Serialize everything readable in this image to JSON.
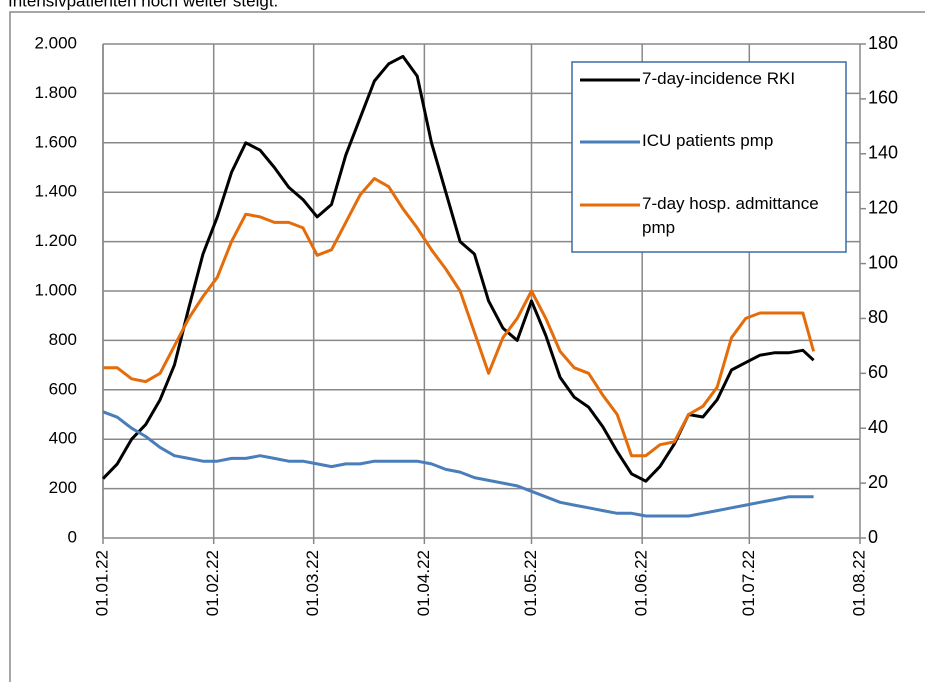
{
  "caption": "Intensivpatienten noch weiter steigt.",
  "chart_data": {
    "type": "line",
    "x": [
      "01.01.22",
      "05.01.22",
      "09.01.22",
      "13.01.22",
      "17.01.22",
      "21.01.22",
      "25.01.22",
      "29.01.22",
      "02.02.22",
      "06.02.22",
      "10.02.22",
      "14.02.22",
      "18.02.22",
      "22.02.22",
      "26.02.22",
      "02.03.22",
      "06.03.22",
      "10.03.22",
      "14.03.22",
      "18.03.22",
      "22.03.22",
      "26.03.22",
      "30.03.22",
      "03.04.22",
      "07.04.22",
      "11.04.22",
      "15.04.22",
      "19.04.22",
      "23.04.22",
      "27.04.22",
      "01.05.22",
      "05.05.22",
      "09.05.22",
      "13.05.22",
      "17.05.22",
      "21.05.22",
      "25.05.22",
      "29.05.22",
      "02.06.22",
      "06.06.22",
      "10.06.22",
      "14.06.22",
      "18.06.22",
      "22.06.22",
      "26.06.22",
      "30.06.22",
      "04.07.22",
      "08.07.22",
      "12.07.22",
      "16.07.22",
      "19.07.22"
    ],
    "series": [
      {
        "name": "7-day-incidence RKI",
        "color": "#000000",
        "values": [
          240,
          300,
          400,
          460,
          560,
          700,
          930,
          1150,
          1300,
          1480,
          1600,
          1570,
          1500,
          1420,
          1370,
          1300,
          1350,
          1550,
          1700,
          1850,
          1920,
          1950,
          1870,
          1600,
          1400,
          1200,
          1150,
          960,
          850,
          800,
          960,
          820,
          650,
          570,
          530,
          450,
          350,
          260,
          230,
          290,
          380,
          500,
          490,
          560,
          680,
          710,
          740,
          750,
          750,
          760,
          720
        ]
      },
      {
        "name": "ICU patients pmp",
        "color": "#4a7ebb",
        "axis": "y2",
        "values": [
          46,
          44,
          40,
          37,
          33,
          30,
          29,
          28,
          28,
          29,
          29,
          30,
          29,
          28,
          28,
          27,
          26,
          27,
          27,
          28,
          28,
          28,
          28,
          27,
          25,
          24,
          22,
          21,
          20,
          19,
          17,
          15,
          13,
          12,
          11,
          10,
          9,
          9,
          8,
          8,
          8,
          8,
          9,
          10,
          11,
          12,
          13,
          14,
          15,
          15,
          15
        ]
      },
      {
        "name": "7-day hosp. admittance pmp",
        "color": "#e46c0a",
        "axis": "y2",
        "values": [
          62,
          62,
          58,
          57,
          60,
          70,
          80,
          88,
          95,
          108,
          118,
          117,
          115,
          115,
          113,
          103,
          105,
          115,
          125,
          131,
          128,
          120,
          113,
          105,
          98,
          90,
          75,
          60,
          73,
          80,
          90,
          80,
          68,
          62,
          60,
          52,
          45,
          30,
          30,
          34,
          35,
          45,
          48,
          55,
          73,
          80,
          82,
          82,
          82,
          82,
          68
        ]
      }
    ],
    "xlim": [
      "01.01.22",
      "01.08.22"
    ],
    "xticks": [
      "01.01.22",
      "01.02.22",
      "01.03.22",
      "01.04.22",
      "01.05.22",
      "01.06.22",
      "01.07.22",
      "01.08.22"
    ],
    "ylim": [
      0,
      2000
    ],
    "yticks": [
      0,
      200,
      400,
      600,
      800,
      {
        "value": 1000,
        "label": "1.000"
      },
      {
        "value": 1200,
        "label": "1.200"
      },
      {
        "value": 1400,
        "label": "1.400"
      },
      {
        "value": 1600,
        "label": "1.600"
      },
      {
        "value": 1800,
        "label": "1.800"
      },
      {
        "value": 2000,
        "label": "2.000"
      }
    ],
    "y2lim": [
      0,
      180
    ],
    "y2ticks": [
      0,
      20,
      40,
      60,
      80,
      100,
      120,
      140,
      160,
      180
    ],
    "y2color": "#2e75b6",
    "grid": true
  }
}
